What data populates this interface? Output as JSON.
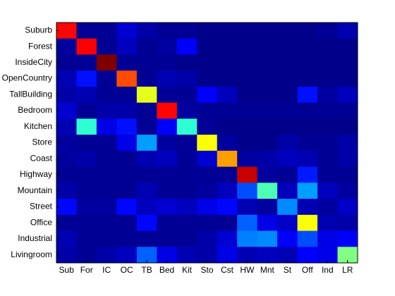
{
  "chart_data": {
    "type": "heatmap",
    "colormap": "jet",
    "x_categories": [
      "Sub",
      "For",
      "IC",
      "OC",
      "TB",
      "Bed",
      "Kit",
      "Sto",
      "Cst",
      "HW",
      "Mnt",
      "St",
      "Off",
      "Ind",
      "LR"
    ],
    "y_categories": [
      "Suburb",
      "Forest",
      "InsideCity",
      "OpenCountry",
      "TallBuilding",
      "Bedroom",
      "Kitchen",
      "Store",
      "Coast",
      "Highway",
      "Mountain",
      "Street",
      "Office",
      "Industrial",
      "Livingroom"
    ],
    "values": [
      [
        0.87,
        0.02,
        0.02,
        0.08,
        0.04,
        0.02,
        0.02,
        0.01,
        0.01,
        0.01,
        0.01,
        0.01,
        0.01,
        0.02,
        0.05
      ],
      [
        0.03,
        0.88,
        0.02,
        0.06,
        0.02,
        0.03,
        0.12,
        0.01,
        0.01,
        0.01,
        0.01,
        0.01,
        0.01,
        0.01,
        0.01
      ],
      [
        0.02,
        0.02,
        1.0,
        0.02,
        0.02,
        0.02,
        0.01,
        0.01,
        0.01,
        0.01,
        0.01,
        0.01,
        0.01,
        0.01,
        0.01
      ],
      [
        0.05,
        0.14,
        0.02,
        0.8,
        0.02,
        0.05,
        0.04,
        0.01,
        0.01,
        0.01,
        0.01,
        0.01,
        0.01,
        0.01,
        0.01
      ],
      [
        0.04,
        0.05,
        0.02,
        0.02,
        0.6,
        0.02,
        0.02,
        0.12,
        0.06,
        0.01,
        0.01,
        0.01,
        0.14,
        0.03,
        0.06
      ],
      [
        0.08,
        0.02,
        0.04,
        0.04,
        0.02,
        0.87,
        0.03,
        0.02,
        0.02,
        0.02,
        0.02,
        0.02,
        0.02,
        0.02,
        0.02
      ],
      [
        0.05,
        0.42,
        0.1,
        0.14,
        0.02,
        0.12,
        0.42,
        0.02,
        0.01,
        0.01,
        0.01,
        0.01,
        0.01,
        0.01,
        0.01
      ],
      [
        0.03,
        0.02,
        0.02,
        0.1,
        0.28,
        0.03,
        0.02,
        0.62,
        0.03,
        0.01,
        0.01,
        0.04,
        0.02,
        0.02,
        0.04
      ],
      [
        0.03,
        0.04,
        0.02,
        0.02,
        0.05,
        0.06,
        0.02,
        0.08,
        0.72,
        0.03,
        0.04,
        0.06,
        0.05,
        0.02,
        0.04
      ],
      [
        0.02,
        0.02,
        0.02,
        0.02,
        0.02,
        0.02,
        0.02,
        0.02,
        0.02,
        0.93,
        0.03,
        0.02,
        0.15,
        0.02,
        0.02
      ],
      [
        0.04,
        0.02,
        0.02,
        0.02,
        0.05,
        0.02,
        0.02,
        0.03,
        0.06,
        0.2,
        0.45,
        0.06,
        0.28,
        0.06,
        0.03
      ],
      [
        0.13,
        0.03,
        0.03,
        0.13,
        0.06,
        0.08,
        0.06,
        0.1,
        0.13,
        0.05,
        0.03,
        0.26,
        0.05,
        0.03,
        0.07
      ],
      [
        0.02,
        0.02,
        0.02,
        0.02,
        0.13,
        0.02,
        0.02,
        0.02,
        0.02,
        0.22,
        0.1,
        0.07,
        0.62,
        0.05,
        0.04
      ],
      [
        0.05,
        0.02,
        0.02,
        0.02,
        0.02,
        0.02,
        0.02,
        0.04,
        0.08,
        0.25,
        0.26,
        0.12,
        0.2,
        0.1,
        0.12
      ],
      [
        0.04,
        0.02,
        0.04,
        0.06,
        0.22,
        0.1,
        0.05,
        0.04,
        0.1,
        0.05,
        0.06,
        0.05,
        0.12,
        0.1,
        0.5
      ]
    ]
  }
}
